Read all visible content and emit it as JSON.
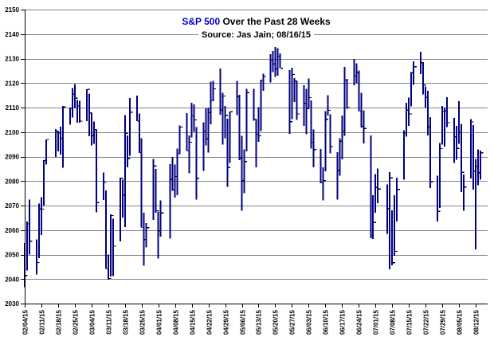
{
  "title": {
    "accent": "S&P 500",
    "rest": " Over the Past 28 Weeks"
  },
  "subtitle": "Source: Jas Jain; 08/16/15",
  "colors": {
    "bar": "#000080",
    "close_tick": "#000000",
    "grid": "#848484",
    "axis": "#000000",
    "label_text": "#000000",
    "title_accent": "#0000CC",
    "background": "#ffffff"
  },
  "chart_data": {
    "type": "hlc-bar",
    "title": "S&P 500 Over the Past 28 Weeks",
    "subtitle": "Source: Jas Jain; 08/16/15",
    "grid": true,
    "legend": false,
    "y_axis": {
      "min": 2030,
      "max": 2150,
      "step": 10
    },
    "x_axis": {
      "start_date": "02/04/15",
      "days_span": 194,
      "tick_labels": [
        "02/04/15",
        "02/11/15",
        "02/18/15",
        "02/25/15",
        "03/04/15",
        "03/11/15",
        "03/18/15",
        "03/25/15",
        "04/01/15",
        "04/08/15",
        "04/15/15",
        "04/22/15",
        "04/29/15",
        "05/06/15",
        "05/13/15",
        "05/20/15",
        "05/27/15",
        "06/03/15",
        "06/10/15",
        "06/17/15",
        "06/24/15",
        "07/01/15",
        "07/08/15",
        "07/15/15",
        "07/22/15",
        "07/29/15",
        "08/05/15",
        "08/12/15"
      ]
    },
    "columns": [
      "date",
      "high",
      "low",
      "close"
    ],
    "days": [
      [
        "02/04/15",
        2054.74,
        2036.72,
        2041.51
      ],
      [
        "02/05/15",
        2063.55,
        2043.45,
        2062.52
      ],
      [
        "02/06/15",
        2072.4,
        2049.97,
        2055.47
      ],
      [
        "02/09/15",
        2056.16,
        2041.88,
        2046.74
      ],
      [
        "02/10/15",
        2070.86,
        2048.62,
        2068.59
      ],
      [
        "02/11/15",
        2073.48,
        2057.99,
        2068.53
      ],
      [
        "02/12/15",
        2088.53,
        2069.98,
        2088.48
      ],
      [
        "02/13/15",
        2097.03,
        2086.7,
        2096.99
      ],
      [
        "02/17/15",
        2101.3,
        2089.8,
        2100.34
      ],
      [
        "02/18/15",
        2100.23,
        2092.15,
        2099.68
      ],
      [
        "02/19/15",
        2102.13,
        2090.79,
        2097.45
      ],
      [
        "02/20/15",
        2110.61,
        2085.44,
        2110.3
      ],
      [
        "02/23/15",
        2110.05,
        2103.0,
        2109.66
      ],
      [
        "02/24/15",
        2117.94,
        2105.87,
        2115.48
      ],
      [
        "02/25/15",
        2119.59,
        2109.89,
        2113.86
      ],
      [
        "02/26/15",
        2113.11,
        2103.76,
        2110.74
      ],
      [
        "02/27/15",
        2112.74,
        2103.75,
        2104.5
      ],
      [
        "03/02/15",
        2117.52,
        2104.5,
        2117.39
      ],
      [
        "03/03/15",
        2115.76,
        2098.26,
        2107.78
      ],
      [
        "03/04/15",
        2107.72,
        2094.49,
        2098.53
      ],
      [
        "03/05/15",
        2104.25,
        2095.22,
        2101.04
      ],
      [
        "03/06/15",
        2100.91,
        2067.27,
        2071.26
      ],
      [
        "03/09/15",
        2083.49,
        2072.21,
        2079.43
      ],
      [
        "03/10/15",
        2076.14,
        2044.16,
        2044.16
      ],
      [
        "03/11/15",
        2050.08,
        2039.69,
        2040.24
      ],
      [
        "03/12/15",
        2066.41,
        2041.1,
        2065.95
      ],
      [
        "03/13/15",
        2064.62,
        2041.17,
        2053.4
      ],
      [
        "03/16/15",
        2081.41,
        2055.35,
        2081.19
      ],
      [
        "03/17/15",
        2080.59,
        2065.08,
        2074.28
      ],
      [
        "03/18/15",
        2106.85,
        2061.23,
        2099.5
      ],
      [
        "03/19/15",
        2098.69,
        2085.56,
        2089.27
      ],
      [
        "03/20/15",
        2113.92,
        2090.32,
        2108.1
      ],
      [
        "03/23/15",
        2114.86,
        2104.42,
        2104.42
      ],
      [
        "03/24/15",
        2107.63,
        2091.5,
        2091.5
      ],
      [
        "03/25/15",
        2097.43,
        2061.05,
        2061.05
      ],
      [
        "03/26/15",
        2067.15,
        2045.5,
        2056.15
      ],
      [
        "03/27/15",
        2062.83,
        2052.96,
        2061.02
      ],
      [
        "03/30/15",
        2088.97,
        2064.11,
        2086.24
      ],
      [
        "03/31/15",
        2084.99,
        2067.04,
        2067.89
      ],
      [
        "04/01/15",
        2067.63,
        2048.38,
        2059.69
      ],
      [
        "04/02/15",
        2072.17,
        2057.32,
        2066.96
      ],
      [
        "04/06/15",
        2086.99,
        2056.52,
        2080.62
      ],
      [
        "04/07/15",
        2089.81,
        2076.1,
        2076.33
      ],
      [
        "04/08/15",
        2086.69,
        2073.3,
        2081.9
      ],
      [
        "04/09/15",
        2093.31,
        2074.29,
        2091.18
      ],
      [
        "04/10/15",
        2102.61,
        2091.08,
        2102.06
      ],
      [
        "04/13/15",
        2107.65,
        2092.33,
        2092.43
      ],
      [
        "04/14/15",
        2098.62,
        2083.24,
        2095.84
      ],
      [
        "04/15/15",
        2111.91,
        2097.82,
        2106.63
      ],
      [
        "04/16/15",
        2111.3,
        2100.02,
        2104.99
      ],
      [
        "04/17/15",
        2102.03,
        2072.37,
        2081.18
      ],
      [
        "04/20/15",
        2103.94,
        2084.11,
        2100.4
      ],
      [
        "04/21/15",
        2109.64,
        2094.56,
        2097.29
      ],
      [
        "04/22/15",
        2109.98,
        2091.71,
        2107.96
      ],
      [
        "04/23/15",
        2120.49,
        2103.19,
        2112.93
      ],
      [
        "04/24/15",
        2120.92,
        2112.65,
        2117.69
      ],
      [
        "04/27/15",
        2125.92,
        2107.04,
        2108.92
      ],
      [
        "04/28/15",
        2116.04,
        2094.89,
        2114.76
      ],
      [
        "04/29/15",
        2110.64,
        2097.41,
        2106.85
      ],
      [
        "04/30/15",
        2105.52,
        2077.59,
        2085.51
      ],
      [
        "05/01/15",
        2108.41,
        2087.38,
        2108.29
      ],
      [
        "05/04/15",
        2120.95,
        2106.87,
        2114.49
      ],
      [
        "05/05/15",
        2115.24,
        2088.46,
        2089.46
      ],
      [
        "05/06/15",
        2098.42,
        2067.93,
        2080.15
      ],
      [
        "05/07/15",
        2092.9,
        2074.99,
        2088.0
      ],
      [
        "05/08/15",
        2117.66,
        2092.13,
        2116.1
      ],
      [
        "05/11/15",
        2117.69,
        2104.58,
        2105.33
      ],
      [
        "05/12/15",
        2105.06,
        2085.57,
        2099.12
      ],
      [
        "05/13/15",
        2110.19,
        2096.04,
        2098.48
      ],
      [
        "05/14/15",
        2121.45,
        2100.43,
        2121.1
      ],
      [
        "05/15/15",
        2123.89,
        2116.81,
        2122.73
      ],
      [
        "05/18/15",
        2131.78,
        2120.16,
        2129.2
      ],
      [
        "05/19/15",
        2133.02,
        2124.5,
        2127.83
      ],
      [
        "05/20/15",
        2134.72,
        2122.59,
        2125.85
      ],
      [
        "05/21/15",
        2134.28,
        2122.95,
        2130.82
      ],
      [
        "05/22/15",
        2132.15,
        2126.06,
        2126.06
      ],
      [
        "05/26/15",
        2125.34,
        2099.18,
        2104.2
      ],
      [
        "05/27/15",
        2126.22,
        2105.21,
        2123.48
      ],
      [
        "05/28/15",
        2122.1,
        2112.27,
        2120.79
      ],
      [
        "05/29/15",
        2120.66,
        2104.89,
        2107.39
      ],
      [
        "06/01/15",
        2119.15,
        2102.54,
        2111.73
      ],
      [
        "06/02/15",
        2117.59,
        2099.14,
        2109.6
      ],
      [
        "06/03/15",
        2121.92,
        2109.61,
        2114.07
      ],
      [
        "06/04/15",
        2112.85,
        2093.23,
        2095.84
      ],
      [
        "06/05/15",
        2100.99,
        2085.67,
        2092.83
      ],
      [
        "06/08/15",
        2093.01,
        2079.11,
        2079.28
      ],
      [
        "06/09/15",
        2085.62,
        2072.14,
        2080.15
      ],
      [
        "06/10/15",
        2108.5,
        2084.06,
        2105.2
      ],
      [
        "06/11/15",
        2115.02,
        2106.79,
        2108.86
      ],
      [
        "06/12/15",
        2107.27,
        2091.33,
        2094.11
      ],
      [
        "06/15/15",
        2091.86,
        2072.49,
        2084.43
      ],
      [
        "06/16/15",
        2097.4,
        2082.1,
        2096.29
      ],
      [
        "06/17/15",
        2106.79,
        2088.86,
        2100.44
      ],
      [
        "06/18/15",
        2126.65,
        2098.5,
        2121.24
      ],
      [
        "06/19/15",
        2121.64,
        2109.45,
        2109.99
      ],
      [
        "06/22/15",
        2129.87,
        2119.1,
        2122.85
      ],
      [
        "06/23/15",
        2128.03,
        2119.89,
        2124.2
      ],
      [
        "06/24/15",
        2125.1,
        2108.58,
        2108.58
      ],
      [
        "06/25/15",
        2116.04,
        2101.78,
        2102.31
      ],
      [
        "06/26/15",
        2108.92,
        2095.38,
        2101.49
      ],
      [
        "06/29/15",
        2098.63,
        2056.64,
        2057.64
      ],
      [
        "06/30/15",
        2074.28,
        2056.32,
        2063.11
      ],
      [
        "07/01/15",
        2082.78,
        2067.0,
        2077.42
      ],
      [
        "07/02/15",
        2085.06,
        2071.02,
        2076.78
      ],
      [
        "07/06/15",
        2078.61,
        2058.4,
        2068.76
      ],
      [
        "07/07/15",
        2083.66,
        2044.02,
        2081.34
      ],
      [
        "07/08/15",
        2068.05,
        2045.66,
        2046.68
      ],
      [
        "07/09/15",
        2074.28,
        2049.45,
        2051.31
      ],
      [
        "07/10/15",
        2081.31,
        2063.52,
        2076.62
      ],
      [
        "07/13/15",
        2100.67,
        2080.54,
        2099.6
      ],
      [
        "07/14/15",
        2111.98,
        2098.19,
        2108.95
      ],
      [
        "07/15/15",
        2114.14,
        2102.47,
        2107.4
      ],
      [
        "07/16/15",
        2124.42,
        2110.56,
        2124.29
      ],
      [
        "07/17/15",
        2128.91,
        2119.21,
        2126.64
      ],
      [
        "07/20/15",
        2132.82,
        2123.66,
        2128.28
      ],
      [
        "07/21/15",
        2128.54,
        2115.4,
        2119.21
      ],
      [
        "07/22/15",
        2118.56,
        2110.0,
        2114.15
      ],
      [
        "07/23/15",
        2116.87,
        2098.63,
        2102.15
      ],
      [
        "07/24/15",
        2106.17,
        2077.09,
        2079.65
      ],
      [
        "07/27/15",
        2082.26,
        2063.52,
        2067.64
      ],
      [
        "07/28/15",
        2095.6,
        2069.09,
        2093.25
      ],
      [
        "07/29/15",
        2110.6,
        2094.97,
        2108.57
      ],
      [
        "07/30/15",
        2110.02,
        2094.08,
        2108.63
      ],
      [
        "07/31/15",
        2114.24,
        2102.07,
        2103.84
      ],
      [
        "08/03/15",
        2105.7,
        2087.31,
        2098.04
      ],
      [
        "08/04/15",
        2102.51,
        2088.61,
        2093.32
      ],
      [
        "08/05/15",
        2112.66,
        2095.27,
        2099.84
      ],
      [
        "08/06/15",
        2103.32,
        2075.53,
        2083.56
      ],
      [
        "08/07/15",
        2082.61,
        2067.91,
        2077.57
      ],
      [
        "08/10/15",
        2105.35,
        2080.98,
        2104.18
      ],
      [
        "08/11/15",
        2102.83,
        2076.49,
        2084.07
      ],
      [
        "08/12/15",
        2089.06,
        2052.09,
        2086.05
      ],
      [
        "08/13/15",
        2092.93,
        2078.26,
        2083.39
      ],
      [
        "08/14/15",
        2092.45,
        2080.61,
        2091.54
      ]
    ]
  }
}
